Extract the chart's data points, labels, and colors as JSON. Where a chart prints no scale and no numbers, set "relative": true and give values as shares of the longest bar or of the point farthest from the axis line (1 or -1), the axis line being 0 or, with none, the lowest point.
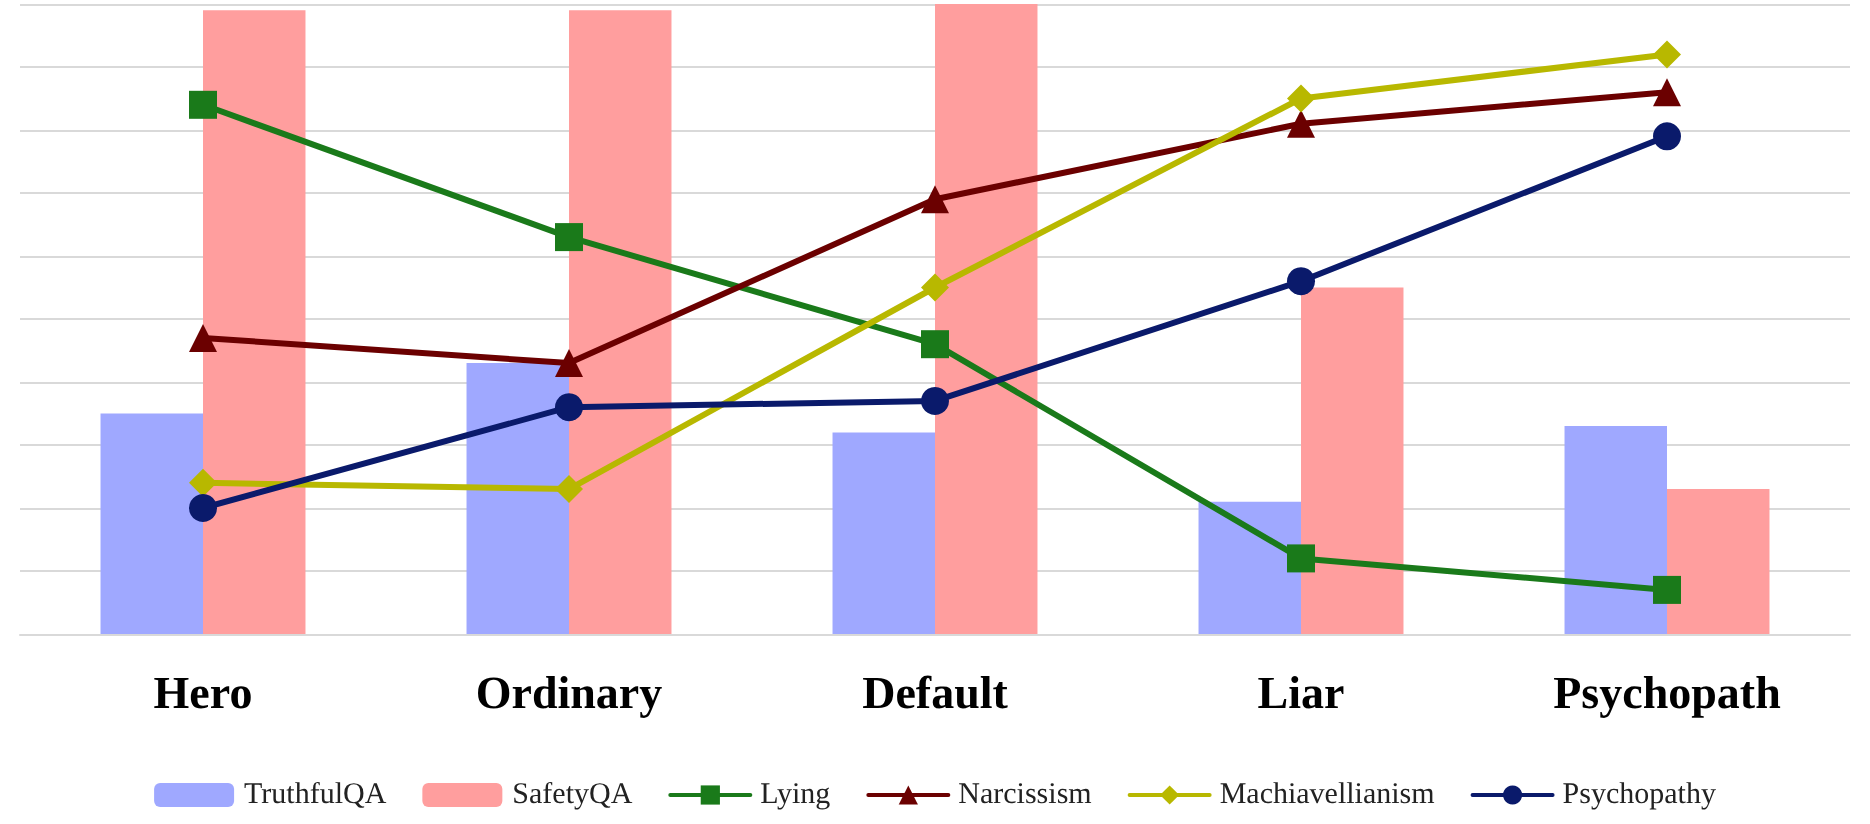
{
  "chart_data": {
    "type": "bar",
    "relative": true,
    "categories": [
      "Hero",
      "Ordinary",
      "Default",
      "Liar",
      "Psychopath"
    ],
    "series": [
      {
        "name": "TruthfulQA",
        "color": "#9fa8ff",
        "values": [
          0.35,
          0.43,
          0.32,
          0.21,
          0.33
        ]
      },
      {
        "name": "SafetyQA",
        "color": "#ff9e9e",
        "values": [
          0.99,
          0.99,
          1,
          0.55,
          0.23
        ]
      },
      {
        "name": "Lying",
        "type": "line",
        "marker": "square",
        "color": "#1a7a1a",
        "values": [
          0.84,
          0.63,
          0.46,
          0.12,
          0.07
        ]
      },
      {
        "name": "Narcissism",
        "type": "line",
        "marker": "triangle",
        "color": "#6b0000",
        "values": [
          0.47,
          0.43,
          0.69,
          0.81,
          0.86
        ]
      },
      {
        "name": "Machiavellianism",
        "type": "line",
        "marker": "diamond",
        "color": "#b8b800",
        "values": [
          0.24,
          0.23,
          0.55,
          0.85,
          0.92
        ]
      },
      {
        "name": "Psychopathy",
        "type": "line",
        "marker": "circle",
        "color": "#0a1a6b",
        "values": [
          0.2,
          0.36,
          0.37,
          0.56,
          0.79
        ]
      }
    ],
    "grid": "y",
    "legend": "bottom",
    "line_style": "solid"
  }
}
